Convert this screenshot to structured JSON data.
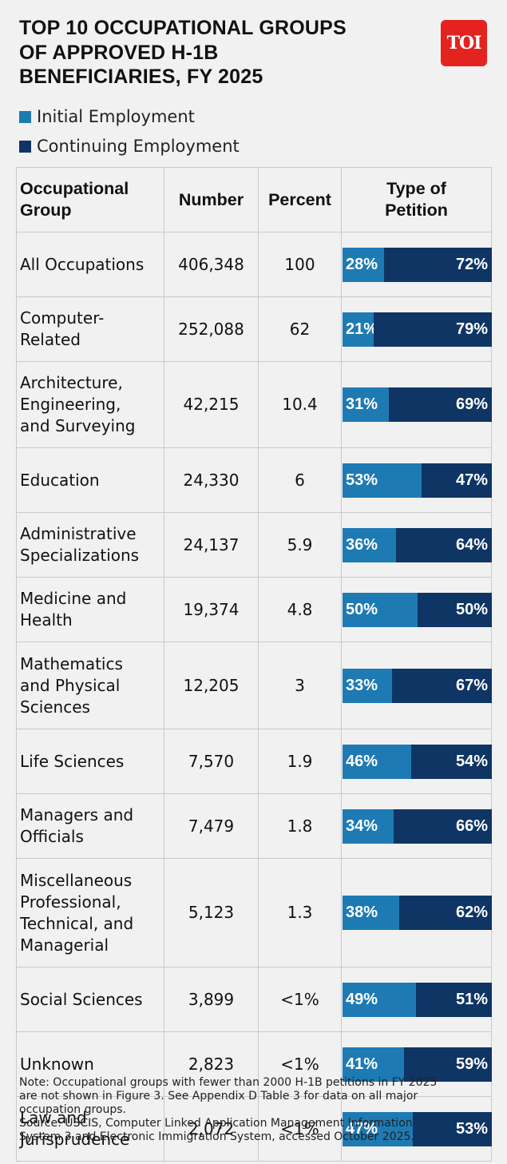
{
  "title_lines": [
    "TOP 10 OCCUPATIONAL GROUPS",
    "OF APPROVED H-1B",
    "BENEFICIARIES, FY 2025"
  ],
  "logo_text": "TOI",
  "legend": [
    {
      "label": "Initial Employment",
      "color": "#1e7ab3"
    },
    {
      "label": "Continuing Employment",
      "color": "#0f3564"
    }
  ],
  "headers": {
    "group": "Occupational Group",
    "number": "Number",
    "percent": "Percent",
    "type": "Type of Petition"
  },
  "chart_data": {
    "type": "table",
    "series": [
      {
        "name": "Initial Employment"
      },
      {
        "name": "Continuing Employment"
      }
    ],
    "rows": [
      {
        "group": "All Occupations",
        "number": "406,348",
        "percent": "100",
        "initial": 28,
        "continuing": 72,
        "initial_label": "28%",
        "continuing_label": "72%"
      },
      {
        "group": "Computer-Related",
        "number": "252,088",
        "percent": "62",
        "initial": 21,
        "continuing": 79,
        "initial_label": "21%",
        "continuing_label": "79%"
      },
      {
        "group": "Architecture, Engineering, and Surveying",
        "number": "42,215",
        "percent": "10.4",
        "initial": 31,
        "continuing": 69,
        "initial_label": "31%",
        "continuing_label": "69%"
      },
      {
        "group": "Education",
        "number": "24,330",
        "percent": "6",
        "initial": 53,
        "continuing": 47,
        "initial_label": "53%",
        "continuing_label": "47%"
      },
      {
        "group": "Administrative Specializations",
        "number": "24,137",
        "percent": "5.9",
        "initial": 36,
        "continuing": 64,
        "initial_label": "36%",
        "continuing_label": "64%"
      },
      {
        "group": "Medicine and Health",
        "number": "19,374",
        "percent": "4.8",
        "initial": 50,
        "continuing": 50,
        "initial_label": "50%",
        "continuing_label": "50%"
      },
      {
        "group": "Mathematics and Physical Sciences",
        "number": "12,205",
        "percent": "3",
        "initial": 33,
        "continuing": 67,
        "initial_label": "33%",
        "continuing_label": "67%"
      },
      {
        "group": "Life Sciences",
        "number": "7,570",
        "percent": "1.9",
        "initial": 46,
        "continuing": 54,
        "initial_label": "46%",
        "continuing_label": "54%"
      },
      {
        "group": "Managers and Officials",
        "number": "7,479",
        "percent": "1.8",
        "initial": 34,
        "continuing": 66,
        "initial_label": "34%",
        "continuing_label": "66%"
      },
      {
        "group": "Miscellaneous Professional, Technical, and Managerial",
        "number": "5,123",
        "percent": "1.3",
        "initial": 38,
        "continuing": 62,
        "initial_label": "38%",
        "continuing_label": "62%"
      },
      {
        "group": "Social Sciences",
        "number": "3,899",
        "percent": "<1%",
        "initial": 49,
        "continuing": 51,
        "initial_label": "49%",
        "continuing_label": "51%"
      },
      {
        "group": "Unknown",
        "number": "2,823",
        "percent": "<1%",
        "initial": 41,
        "continuing": 59,
        "initial_label": "41%",
        "continuing_label": "59%"
      },
      {
        "group": "Law and Jurisprudence",
        "number": "2,072",
        "percent": "<1%",
        "initial": 47,
        "continuing": 53,
        "initial_label": "47%",
        "continuing_label": "53%"
      }
    ]
  },
  "note_lines": [
    "Note: Occupational groups with fewer than 2000 H-1B petitions in FY 2025",
    "are not shown in Figure 3. See Appendix D Table 3 for data on all major",
    "occupation groups.",
    "Source: USCIS, Computer Linked Application Management Information",
    "System 3 and Electronic Immigration System, accessed October 2025."
  ]
}
